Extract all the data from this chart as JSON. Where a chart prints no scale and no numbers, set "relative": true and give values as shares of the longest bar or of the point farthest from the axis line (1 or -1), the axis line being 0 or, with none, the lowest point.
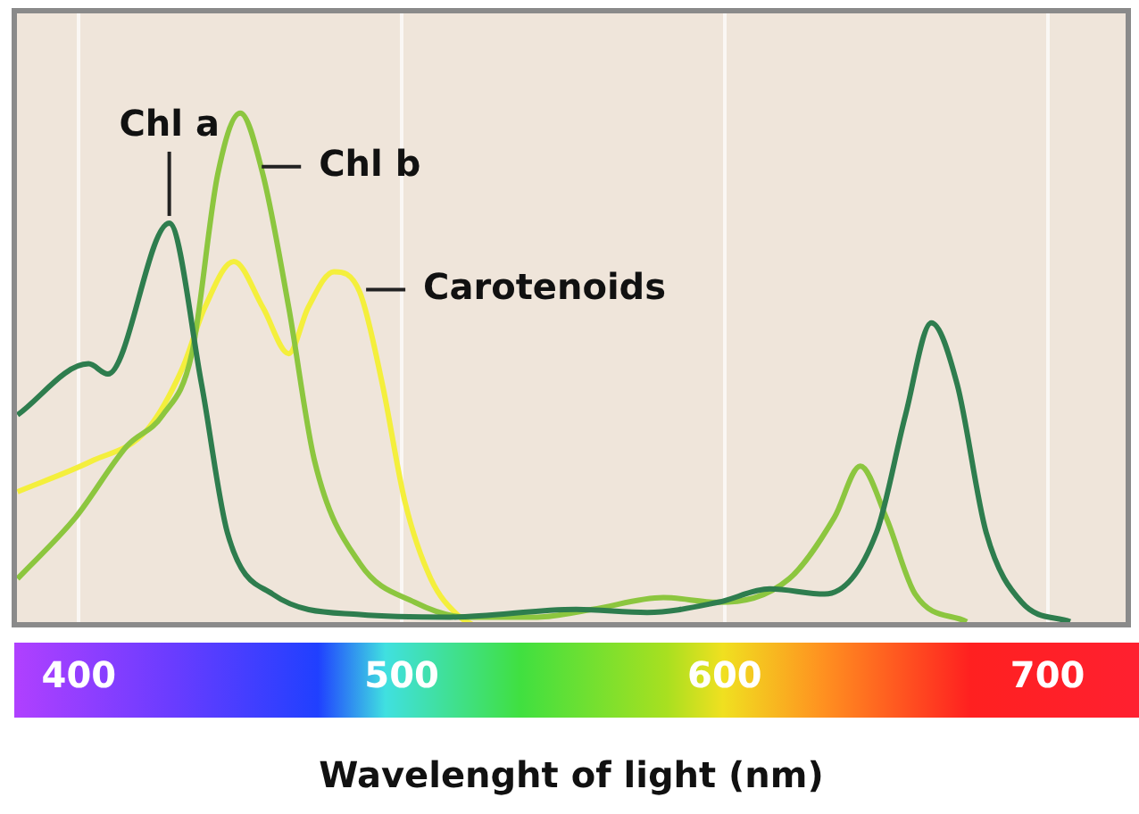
{
  "chart_data": {
    "type": "line",
    "relative": true,
    "xlabel": "Wavelenght of light (nm)",
    "xlim": [
      380,
      725
    ],
    "xticks": [
      400,
      500,
      600,
      700
    ],
    "grid": "x",
    "legend": false,
    "marker": "none",
    "line_style": "solid",
    "series": [
      {
        "name": "Chl a",
        "color": "#2e7d4e",
        "x": [
          381,
          403,
          409,
          428,
          438,
          446,
          460,
          487,
          515,
          554,
          576,
          598,
          614,
          631,
          647,
          656,
          664,
          672,
          681,
          692,
          707
        ],
        "values": [
          0.41,
          0.51,
          0.49,
          0.785,
          0.47,
          0.18,
          0.06,
          0.02,
          0.015,
          0.03,
          0.024,
          0.044,
          0.07,
          0.06,
          0.18,
          0.41,
          0.59,
          0.47,
          0.18,
          0.044,
          0.006
        ]
      },
      {
        "name": "Chl b",
        "color": "#8cc63f",
        "x": [
          381,
          399,
          415,
          426,
          435,
          443,
          450,
          457,
          465,
          473,
          487,
          504,
          520,
          542,
          559,
          581,
          598,
          620,
          634,
          642,
          650,
          659,
          675
        ],
        "values": [
          0.09,
          0.21,
          0.35,
          0.41,
          0.53,
          0.88,
          1,
          0.88,
          0.62,
          0.32,
          0.12,
          0.044,
          0.015,
          0.015,
          0.03,
          0.053,
          0.044,
          0.09,
          0.21,
          0.31,
          0.21,
          0.06,
          0.006
        ]
      },
      {
        "name": "Carotenoids",
        "color": "#f4ef3c",
        "x": [
          381,
          404,
          421,
          432,
          439,
          448,
          457,
          465,
          471,
          479,
          487,
          494,
          501,
          509,
          518,
          522
        ],
        "values": [
          0.26,
          0.32,
          0.38,
          0.5,
          0.62,
          0.71,
          0.62,
          0.53,
          0.62,
          0.69,
          0.65,
          0.47,
          0.24,
          0.09,
          0.015,
          0
        ]
      }
    ]
  }
}
